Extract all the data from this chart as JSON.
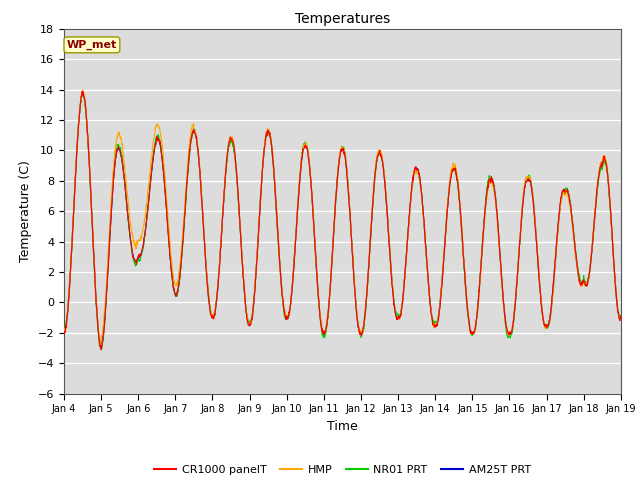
{
  "title": "Temperatures",
  "xlabel": "Time",
  "ylabel": "Temperature (C)",
  "ylim": [
    -6,
    18
  ],
  "yticks": [
    -6,
    -4,
    -2,
    0,
    2,
    4,
    6,
    8,
    10,
    12,
    14,
    16,
    18
  ],
  "annotation_text": "WP_met",
  "annotation_color": "#8B0000",
  "annotation_bg": "#FFFFCC",
  "plot_bg_color": "#DCDCDC",
  "fig_bg_color": "#FFFFFF",
  "line_colors": {
    "CR1000 panelT": "#FF0000",
    "HMP": "#FFA500",
    "NR01 PRT": "#00CC00",
    "AM25T PRT": "#0000CC"
  },
  "legend_labels": [
    "CR1000 panelT",
    "HMP",
    "NR01 PRT",
    "AM25T PRT"
  ],
  "figsize": [
    6.4,
    4.8
  ],
  "dpi": 100
}
